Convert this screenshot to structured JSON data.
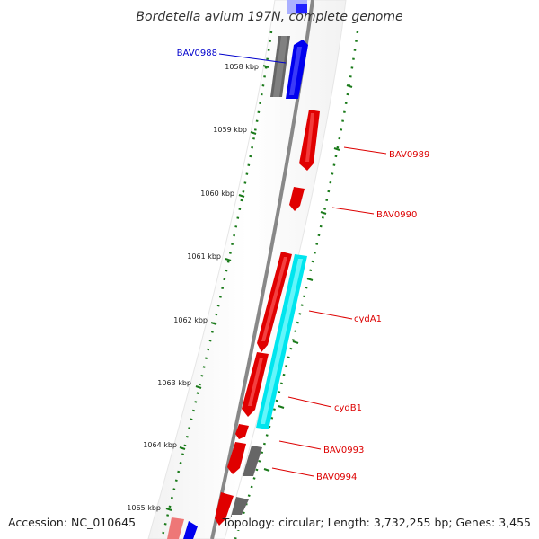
{
  "title": "Bordetella avium 197N, complete genome",
  "footer": {
    "accession": "Accession: NC_010645",
    "topology": "Topology: circular; Length: 3,732,255 bp; Genes: 3,455"
  },
  "ticks": [
    {
      "label": "1058 kbp"
    },
    {
      "label": "1059 kbp"
    },
    {
      "label": "1060 kbp"
    },
    {
      "label": "1061 kbp"
    },
    {
      "label": "1062 kbp"
    },
    {
      "label": "1063 kbp"
    },
    {
      "label": "1064 kbp"
    },
    {
      "label": "1065 kbp"
    }
  ],
  "gene_labels": [
    {
      "name": "BAV0988",
      "color": "#0000cc"
    },
    {
      "name": "BAV0989",
      "color": "#dd0000"
    },
    {
      "name": "BAV0990",
      "color": "#dd0000"
    },
    {
      "name": "cydA1",
      "color": "#dd0000"
    },
    {
      "name": "cydB1",
      "color": "#dd0000"
    },
    {
      "name": "BAV0993",
      "color": "#dd0000"
    },
    {
      "name": "BAV0994",
      "color": "#dd0000"
    }
  ],
  "colors": {
    "backbone": "#888888",
    "tick_marks": "#1a7a1a",
    "forward_gene": "#e00000",
    "reverse_gene": "#0000ee",
    "other_gene": "#666666",
    "highlight_gene": "#00e5ee"
  }
}
